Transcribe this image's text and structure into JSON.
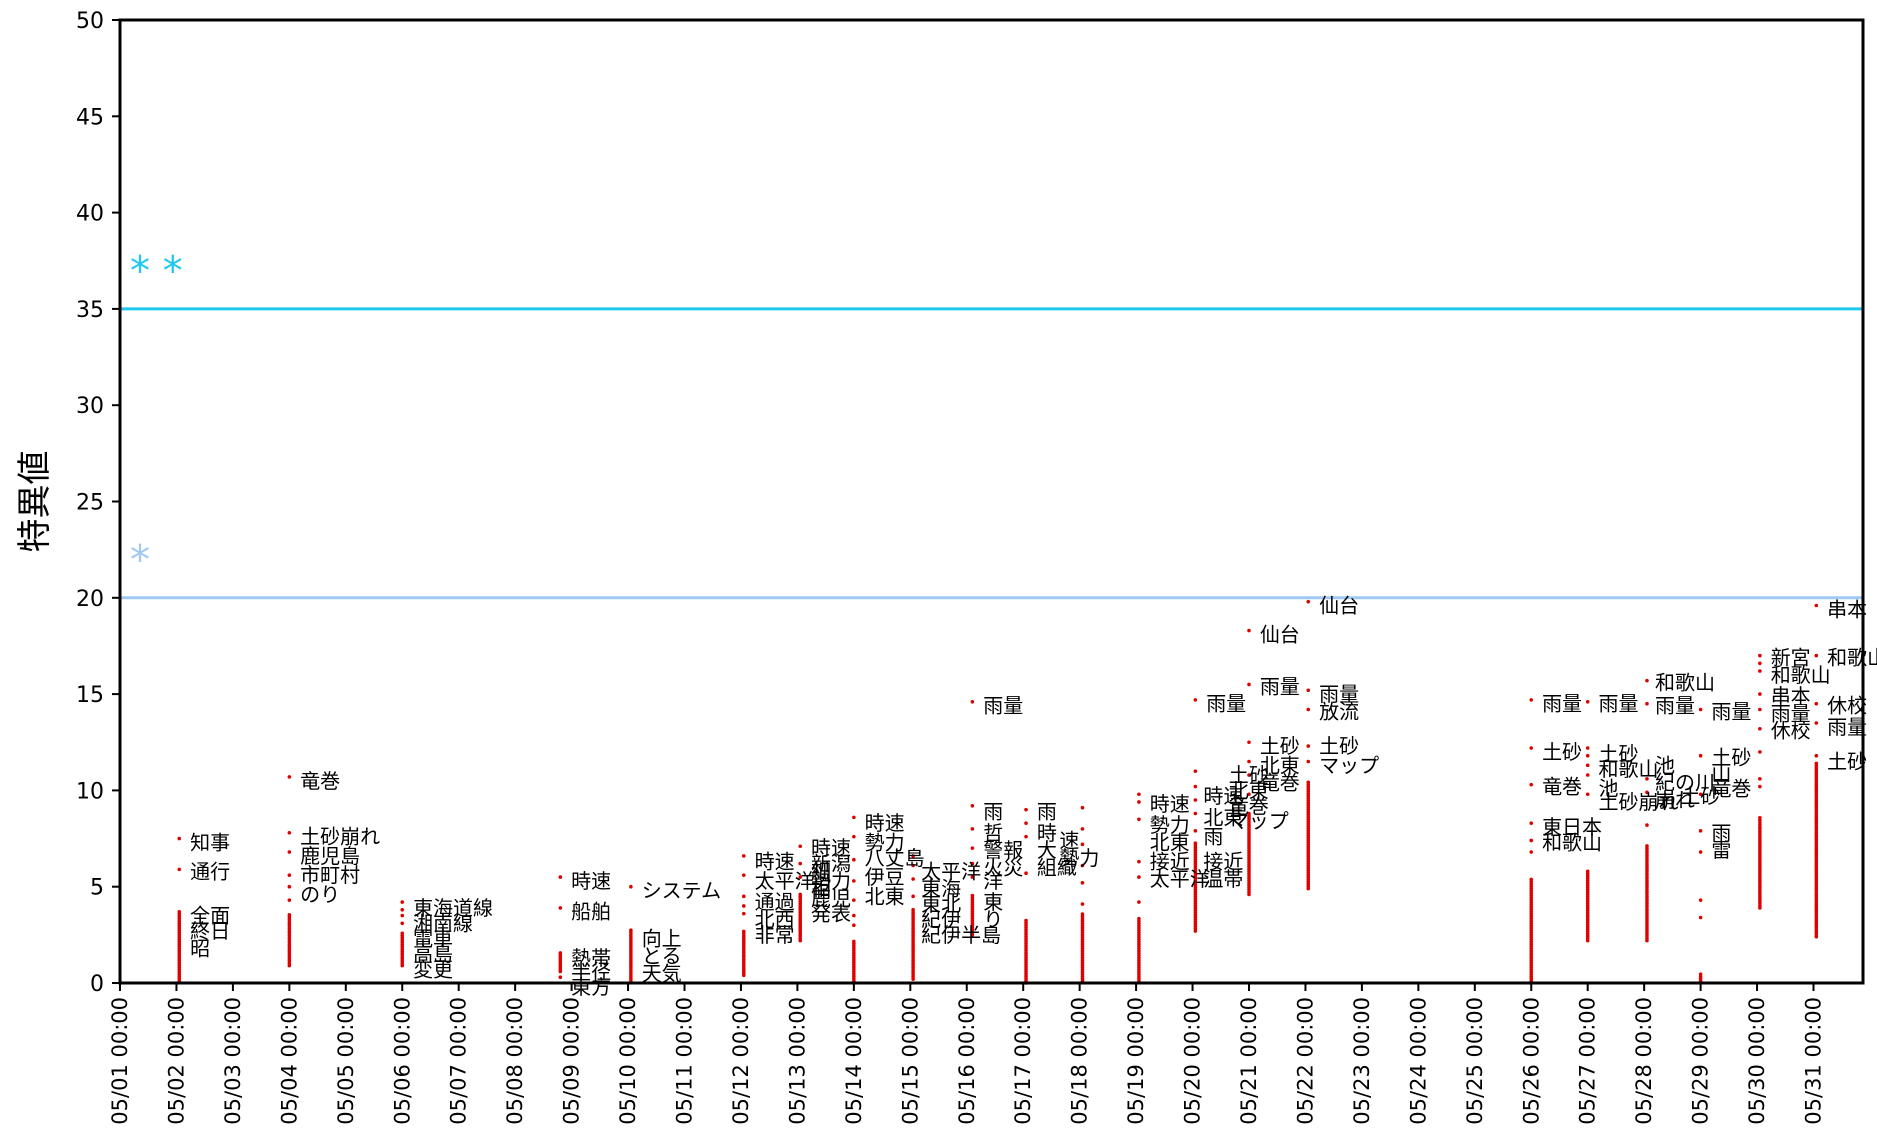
{
  "chart_data": {
    "type": "scatter",
    "title": "",
    "xlabel": "",
    "ylabel": "特異値",
    "ylim": [
      0,
      50
    ],
    "y_ticks": [
      0,
      5,
      10,
      15,
      20,
      25,
      30,
      35,
      40,
      45,
      50
    ],
    "x_ticks": [
      "05/01 00:00",
      "05/02 00:00",
      "05/03 00:00",
      "05/04 00:00",
      "05/05 00:00",
      "05/06 00:00",
      "05/07 00:00",
      "05/08 00:00",
      "05/09 00:00",
      "05/10 00:00",
      "05/11 00:00",
      "05/12 00:00",
      "05/13 00:00",
      "05/14 00:00",
      "05/15 00:00",
      "05/16 00:00",
      "05/17 00:00",
      "05/18 00:00",
      "05/19 00:00",
      "05/20 00:00",
      "05/21 00:00",
      "05/22 00:00",
      "05/23 00:00",
      "05/24 00:00",
      "05/25 00:00",
      "05/26 00:00",
      "05/27 00:00",
      "05/28 00:00",
      "05/29 00:00",
      "05/30 00:00",
      "05/31 00:00"
    ],
    "x_range_days": [
      0,
      32.3
    ],
    "grid": false,
    "threshold_lines": [
      {
        "y": 35,
        "color": "#1ec8f0",
        "marker": "* *",
        "marker_y": 37
      },
      {
        "y": 20,
        "color": "#9fc9f2",
        "marker": "*",
        "marker_y": 22
      }
    ],
    "point_color": "#e00000",
    "point_columns": [
      {
        "x": 1.05,
        "ymin": 0.1,
        "ymax": 3.8,
        "extra": [
          5.9,
          7.5
        ]
      },
      {
        "x": 3.0,
        "ymin": 0.9,
        "ymax": 3.6,
        "extra": [
          4.3,
          5.0,
          5.6,
          6.8,
          7.8,
          10.7
        ]
      },
      {
        "x": 5.0,
        "ymin": 0.9,
        "ymax": 2.6,
        "extra": [
          3.1,
          3.5,
          3.8,
          4.2
        ]
      },
      {
        "x": 7.8,
        "ymin": 0.6,
        "ymax": 1.6,
        "extra": [
          0.3,
          3.9,
          5.5
        ]
      },
      {
        "x": 9.05,
        "ymin": 0.1,
        "ymax": 2.8,
        "extra": [
          5.0
        ]
      },
      {
        "x": 11.05,
        "ymin": 0.4,
        "ymax": 2.7,
        "extra": [
          3.6,
          4.0,
          4.5,
          5.6,
          6.6
        ]
      },
      {
        "x": 12.05,
        "ymin": 2.2,
        "ymax": 4.6,
        "extra": [
          5.5,
          6.2,
          7.1
        ]
      },
      {
        "x": 13.0,
        "ymin": 0.0,
        "ymax": 2.2,
        "extra": [
          3.0,
          3.5,
          4.3,
          5.3,
          6.4,
          7.6,
          8.6
        ]
      },
      {
        "x": 14.05,
        "ymin": 0.2,
        "ymax": 3.8,
        "extra": [
          4.5,
          5.4,
          6.1,
          6.6
        ]
      },
      {
        "x": 15.1,
        "ymin": 2.5,
        "ymax": 4.6,
        "extra": [
          5.5,
          6.2,
          7.0,
          8.0,
          9.2,
          14.6
        ]
      },
      {
        "x": 16.05,
        "ymin": 0.0,
        "ymax": 3.3,
        "extra": [
          5.7,
          7.6,
          8.3,
          9.0
        ]
      },
      {
        "x": 17.05,
        "ymin": 0.1,
        "ymax": 3.6,
        "extra": [
          4.1,
          5.2,
          6.1,
          7.2,
          8.0,
          9.1
        ]
      },
      {
        "x": 18.05,
        "ymin": 0.1,
        "ymax": 3.4,
        "extra": [
          4.2,
          5.5,
          6.3,
          8.5,
          9.4,
          9.8
        ]
      },
      {
        "x": 19.05,
        "ymin": 2.7,
        "ymax": 7.3,
        "extra": [
          7.9,
          8.8,
          9.5,
          10.2,
          11.0,
          14.7
        ]
      },
      {
        "x": 20.0,
        "ymin": 4.6,
        "ymax": 8.9,
        "extra": [
          9.8,
          10.8,
          11.5,
          12.5,
          15.5,
          18.3
        ]
      },
      {
        "x": 21.05,
        "ymin": 4.9,
        "ymax": 10.5,
        "extra": [
          11.5,
          12.3,
          14.2,
          15.2,
          19.8
        ]
      },
      {
        "x": 25.0,
        "ymin": 0.1,
        "ymax": 5.4,
        "extra": [
          6.8,
          7.4,
          8.3,
          10.3,
          12.2,
          14.7
        ]
      },
      {
        "x": 26.0,
        "ymin": 2.2,
        "ymax": 5.9,
        "extra": [
          9.8,
          10.8,
          11.3,
          11.8,
          12.2,
          14.6
        ]
      },
      {
        "x": 27.05,
        "ymin": 2.2,
        "ymax": 7.2,
        "extra": [
          8.2,
          9.9,
          10.6,
          14.5,
          15.7
        ]
      },
      {
        "x": 28.0,
        "ymin": 0.1,
        "ymax": 0.5,
        "extra": [
          3.4,
          4.3,
          6.8,
          7.9,
          9.8,
          11.8,
          14.2
        ]
      },
      {
        "x": 29.05,
        "ymin": 3.9,
        "ymax": 8.6,
        "extra": [
          10.2,
          10.6,
          12.0,
          13.2,
          14.2,
          15.0,
          16.2,
          16.6,
          17.0
        ]
      },
      {
        "x": 30.05,
        "ymin": 2.4,
        "ymax": 11.5,
        "extra": [
          11.8,
          13.5,
          14.5,
          17.0,
          19.6
        ]
      }
    ],
    "annotations": [
      {
        "x": 1.1,
        "y": 7.3,
        "text": "知事"
      },
      {
        "x": 1.1,
        "y": 5.8,
        "text": "通行"
      },
      {
        "x": 1.1,
        "y": 3.5,
        "text": "全面"
      },
      {
        "x": 1.1,
        "y": 2.7,
        "text": "終日"
      },
      {
        "x": 1.1,
        "y": 1.8,
        "text": "昭"
      },
      {
        "x": 3.05,
        "y": 10.5,
        "text": "竜巻"
      },
      {
        "x": 3.05,
        "y": 7.6,
        "text": "土砂崩れ"
      },
      {
        "x": 3.05,
        "y": 6.6,
        "text": "鹿児島"
      },
      {
        "x": 3.05,
        "y": 5.6,
        "text": "市町村"
      },
      {
        "x": 3.05,
        "y": 4.6,
        "text": "のり"
      },
      {
        "x": 5.05,
        "y": 3.9,
        "text": "東海道線"
      },
      {
        "x": 5.05,
        "y": 3.1,
        "text": "湘南線"
      },
      {
        "x": 5.05,
        "y": 2.3,
        "text": "電車"
      },
      {
        "x": 5.05,
        "y": 1.5,
        "text": "高島"
      },
      {
        "x": 5.05,
        "y": 0.7,
        "text": "変更"
      },
      {
        "x": 7.85,
        "y": 5.3,
        "text": "時速"
      },
      {
        "x": 7.85,
        "y": 3.7,
        "text": "船舶"
      },
      {
        "x": 7.85,
        "y": 1.3,
        "text": "熱帯"
      },
      {
        "x": 7.85,
        "y": 0.6,
        "text": "半径"
      },
      {
        "x": 7.85,
        "y": -0.2,
        "text": "東方"
      },
      {
        "x": 9.1,
        "y": 4.8,
        "text": "システム"
      },
      {
        "x": 9.1,
        "y": 2.3,
        "text": "向上"
      },
      {
        "x": 9.1,
        "y": 1.4,
        "text": "とる"
      },
      {
        "x": 9.1,
        "y": 0.5,
        "text": "天気"
      },
      {
        "x": 11.1,
        "y": 6.3,
        "text": "時速"
      },
      {
        "x": 11.1,
        "y": 5.3,
        "text": "太平洋"
      },
      {
        "x": 11.1,
        "y": 4.2,
        "text": "通過"
      },
      {
        "x": 11.1,
        "y": 3.3,
        "text": "北西"
      },
      {
        "x": 11.1,
        "y": 2.5,
        "text": "非常"
      },
      {
        "x": 12.1,
        "y": 7.0,
        "text": "時速"
      },
      {
        "x": 12.1,
        "y": 6.2,
        "text": "新潟"
      },
      {
        "x": 12.1,
        "y": 5.3,
        "text": "勢力"
      },
      {
        "x": 12.1,
        "y": 4.4,
        "text": "鹿児"
      },
      {
        "x": 12.1,
        "y": 3.6,
        "text": "発表"
      },
      {
        "x": 12.1,
        "y": 5.8,
        "text": "細"
      },
      {
        "x": 12.1,
        "y": 4.9,
        "text": "相"
      },
      {
        "x": 13.05,
        "y": 8.3,
        "text": "時速"
      },
      {
        "x": 13.05,
        "y": 7.3,
        "text": "勢力"
      },
      {
        "x": 13.05,
        "y": 6.5,
        "text": "八丈島"
      },
      {
        "x": 13.05,
        "y": 5.5,
        "text": "伊豆"
      },
      {
        "x": 13.05,
        "y": 4.5,
        "text": "北東"
      },
      {
        "x": 14.05,
        "y": 5.8,
        "text": "太平洋"
      },
      {
        "x": 14.05,
        "y": 4.9,
        "text": "東海"
      },
      {
        "x": 14.05,
        "y": 4.1,
        "text": "東北"
      },
      {
        "x": 14.05,
        "y": 3.3,
        "text": "紀伊"
      },
      {
        "x": 14.05,
        "y": 2.5,
        "text": "紀伊半島"
      },
      {
        "x": 15.15,
        "y": 14.4,
        "text": "雨量"
      },
      {
        "x": 15.15,
        "y": 8.9,
        "text": "雨"
      },
      {
        "x": 15.15,
        "y": 7.8,
        "text": "哲"
      },
      {
        "x": 15.15,
        "y": 6.9,
        "text": "警報"
      },
      {
        "x": 15.15,
        "y": 6.0,
        "text": "火災"
      },
      {
        "x": 15.15,
        "y": 4.2,
        "text": "東"
      },
      {
        "x": 15.15,
        "y": 3.3,
        "text": "り"
      },
      {
        "x": 15.15,
        "y": 5.3,
        "text": "洋"
      },
      {
        "x": 16.1,
        "y": 8.9,
        "text": "雨"
      },
      {
        "x": 16.1,
        "y": 7.8,
        "text": "時"
      },
      {
        "x": 16.1,
        "y": 6.9,
        "text": "大"
      },
      {
        "x": 16.1,
        "y": 6.0,
        "text": "組織"
      },
      {
        "x": 16.5,
        "y": 7.4,
        "text": "速"
      },
      {
        "x": 16.5,
        "y": 6.5,
        "text": "勢力"
      },
      {
        "x": 18.1,
        "y": 9.3,
        "text": "時速"
      },
      {
        "x": 18.1,
        "y": 8.2,
        "text": "勢力"
      },
      {
        "x": 18.1,
        "y": 7.3,
        "text": "北東"
      },
      {
        "x": 18.1,
        "y": 6.3,
        "text": "接近"
      },
      {
        "x": 18.1,
        "y": 5.4,
        "text": "太平洋"
      },
      {
        "x": 19.05,
        "y": 9.7,
        "text": "時速"
      },
      {
        "x": 19.05,
        "y": 8.6,
        "text": "北東"
      },
      {
        "x": 19.05,
        "y": 7.6,
        "text": "雨"
      },
      {
        "x": 19.05,
        "y": 6.3,
        "text": "接近"
      },
      {
        "x": 19.05,
        "y": 5.4,
        "text": "温帯"
      },
      {
        "x": 19.1,
        "y": 14.5,
        "text": "雨量"
      },
      {
        "x": 19.5,
        "y": 10.8,
        "text": "土砂"
      },
      {
        "x": 19.5,
        "y": 10.0,
        "text": "北東"
      },
      {
        "x": 19.5,
        "y": 9.2,
        "text": "竜巻"
      },
      {
        "x": 19.5,
        "y": 8.4,
        "text": "マップ"
      },
      {
        "x": 20.05,
        "y": 18.1,
        "text": "仙台"
      },
      {
        "x": 20.05,
        "y": 15.4,
        "text": "雨量"
      },
      {
        "x": 20.05,
        "y": 12.3,
        "text": "土砂"
      },
      {
        "x": 20.05,
        "y": 11.3,
        "text": "北東"
      },
      {
        "x": 20.05,
        "y": 10.4,
        "text": "竜巻"
      },
      {
        "x": 21.1,
        "y": 19.6,
        "text": "仙台"
      },
      {
        "x": 21.1,
        "y": 15.0,
        "text": "雨量"
      },
      {
        "x": 21.1,
        "y": 14.1,
        "text": "放流"
      },
      {
        "x": 21.1,
        "y": 12.3,
        "text": "土砂"
      },
      {
        "x": 21.1,
        "y": 11.3,
        "text": "マップ"
      },
      {
        "x": 25.05,
        "y": 14.5,
        "text": "雨量"
      },
      {
        "x": 25.05,
        "y": 12.0,
        "text": "土砂"
      },
      {
        "x": 25.05,
        "y": 10.2,
        "text": "竜巻"
      },
      {
        "x": 25.05,
        "y": 8.1,
        "text": "東日本"
      },
      {
        "x": 25.05,
        "y": 7.3,
        "text": "和歌山"
      },
      {
        "x": 26.05,
        "y": 14.5,
        "text": "雨量"
      },
      {
        "x": 26.05,
        "y": 11.9,
        "text": "土砂"
      },
      {
        "x": 26.05,
        "y": 11.1,
        "text": "和歌山"
      },
      {
        "x": 26.05,
        "y": 10.1,
        "text": "池"
      },
      {
        "x": 26.05,
        "y": 9.4,
        "text": "土砂崩れ"
      },
      {
        "x": 27.05,
        "y": 15.6,
        "text": "和歌山"
      },
      {
        "x": 27.05,
        "y": 14.4,
        "text": "雨量"
      },
      {
        "x": 27.05,
        "y": 11.3,
        "text": "池"
      },
      {
        "x": 27.05,
        "y": 10.4,
        "text": "紀の川"
      },
      {
        "x": 27.05,
        "y": 9.5,
        "text": "崩れ"
      },
      {
        "x": 27.5,
        "y": 9.7,
        "text": "土砂"
      },
      {
        "x": 28.05,
        "y": 14.1,
        "text": "雨量"
      },
      {
        "x": 28.05,
        "y": 11.7,
        "text": "土砂"
      },
      {
        "x": 28.05,
        "y": 10.9,
        "text": "山"
      },
      {
        "x": 28.05,
        "y": 10.1,
        "text": "竜巻"
      },
      {
        "x": 28.05,
        "y": 7.8,
        "text": "雨"
      },
      {
        "x": 28.05,
        "y": 6.9,
        "text": "雷"
      },
      {
        "x": 29.1,
        "y": 16.9,
        "text": "新宮"
      },
      {
        "x": 29.1,
        "y": 16.0,
        "text": "和歌山"
      },
      {
        "x": 29.1,
        "y": 14.9,
        "text": "串本"
      },
      {
        "x": 29.1,
        "y": 14.0,
        "text": "雨量"
      },
      {
        "x": 29.1,
        "y": 13.1,
        "text": "休校"
      },
      {
        "x": 30.1,
        "y": 19.4,
        "text": "串本"
      },
      {
        "x": 30.1,
        "y": 16.9,
        "text": "和歌山"
      },
      {
        "x": 30.1,
        "y": 14.4,
        "text": "休校"
      },
      {
        "x": 30.1,
        "y": 13.3,
        "text": "雨量"
      },
      {
        "x": 30.1,
        "y": 11.5,
        "text": "土砂"
      }
    ]
  }
}
